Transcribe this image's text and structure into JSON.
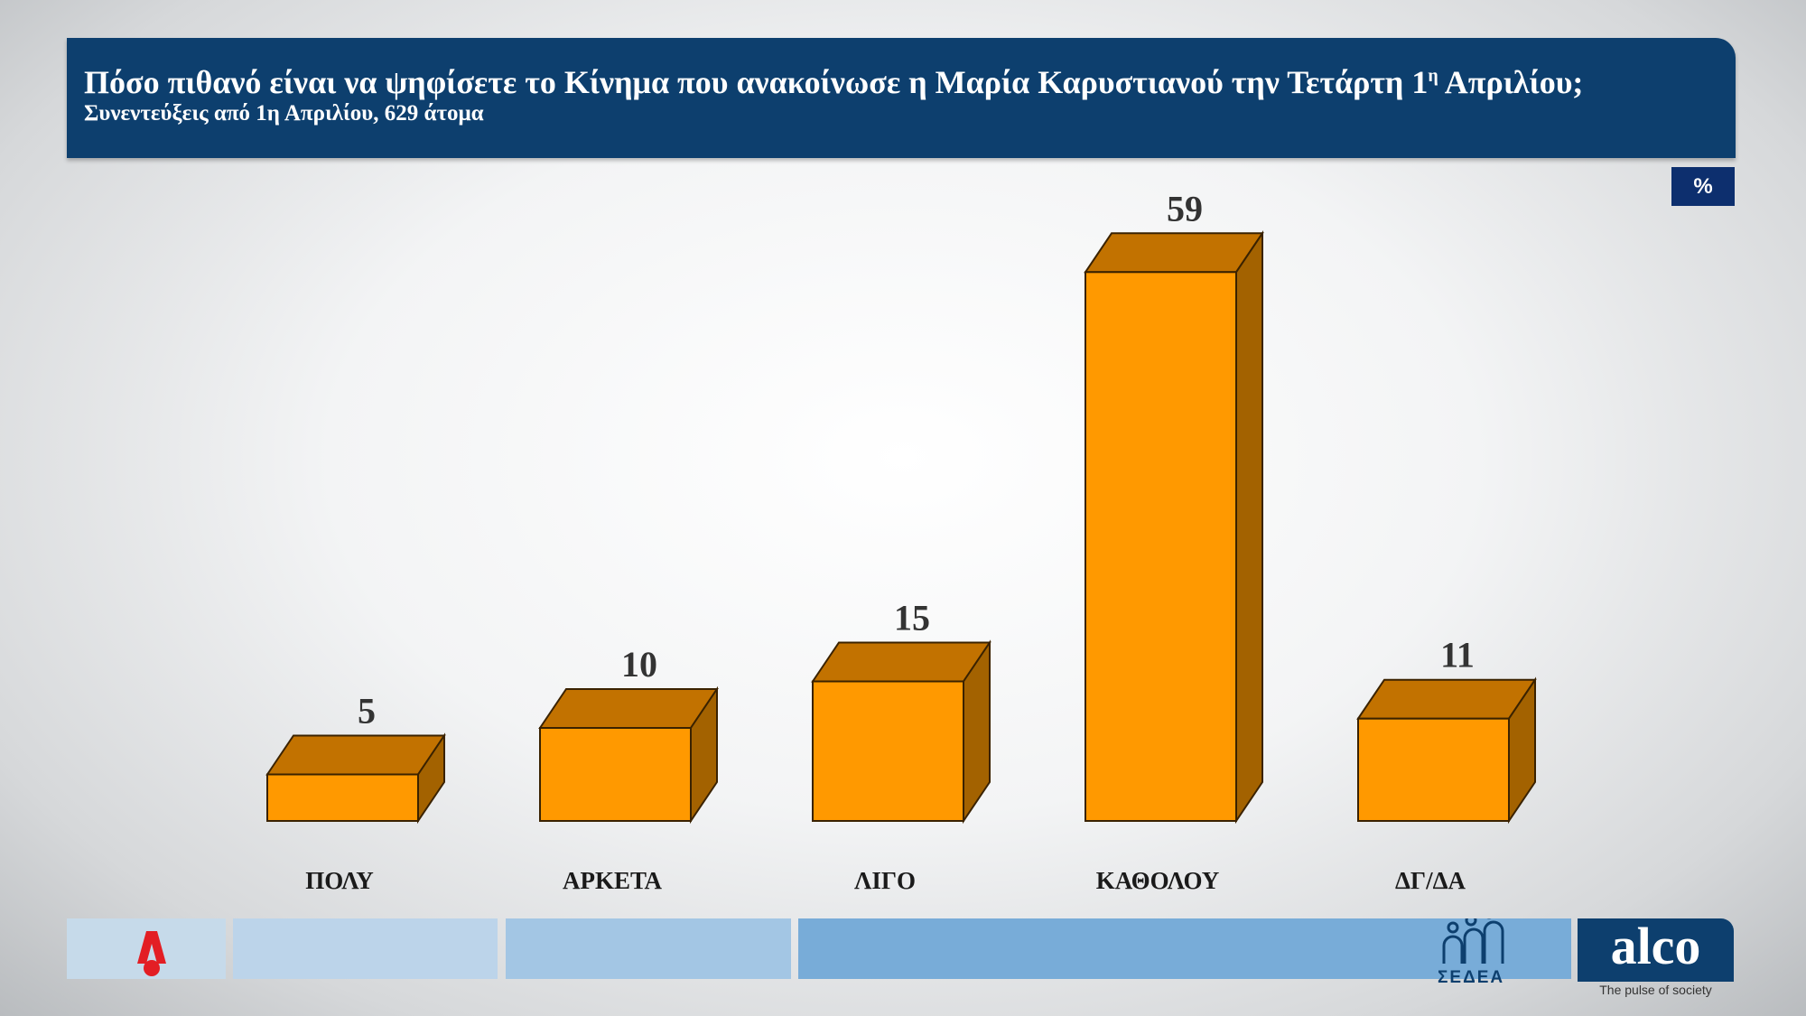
{
  "header": {
    "title": "Πόσο πιθανό είναι να ψηφίσετε το Κίνημα που ανακοίνωσε η Μαρία Καρυστιανού την Τετάρτη 1",
    "title_sup": "η",
    "title_end": " Απριλίου;",
    "subtitle": "Συνεντεύξεις από 1η Απριλίου, 629 άτομα"
  },
  "unit_badge": "%",
  "chart_data": {
    "type": "bar",
    "style": "3d",
    "categories": [
      "ΠΟΛΥ",
      "ΑΡΚΕΤΑ",
      "ΛΙΓΟ",
      "ΚΑΘΟΛΟΥ",
      "ΔΓ/ΔΑ"
    ],
    "values": [
      5,
      10,
      15,
      59,
      11
    ],
    "value_labels": [
      "5",
      "10",
      "15",
      "59",
      "11"
    ],
    "unit": "%",
    "colors": {
      "front": "#FF9900",
      "top": "#C27200",
      "side": "#A36200"
    },
    "grid": false,
    "legend": "none"
  },
  "footer": {
    "logo_left": "ALPHA",
    "logo_sedea": "ΣΕΔΕΑ",
    "logo_alco": "alco",
    "alco_tagline": "The pulse of society"
  }
}
